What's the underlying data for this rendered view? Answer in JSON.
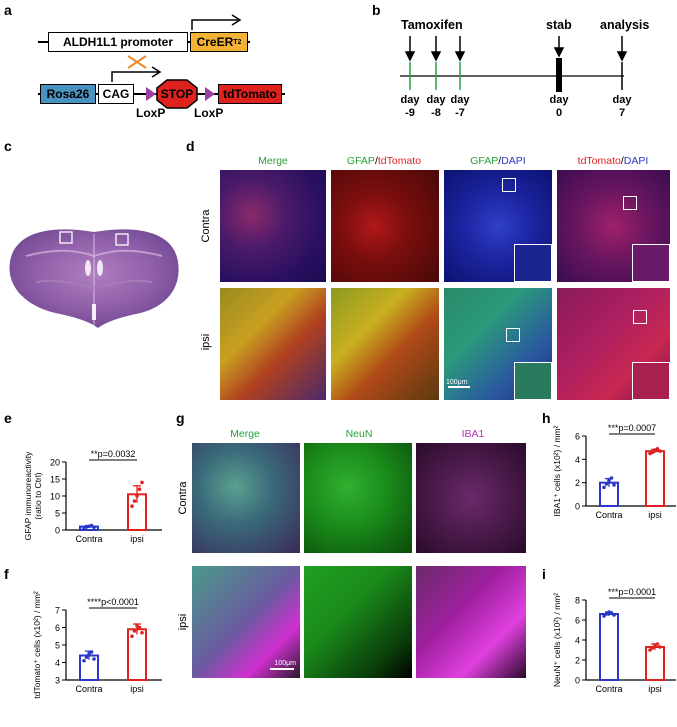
{
  "panels": {
    "a": "a",
    "b": "b",
    "c": "c",
    "d": "d",
    "e": "e",
    "f": "f",
    "g": "g",
    "h": "h",
    "i": "i"
  },
  "panel_a": {
    "promoter": "ALDH1L1 promoter",
    "cre": "CreER",
    "cre_sup": "T2",
    "rosa": "Rosa26",
    "cag": "CAG",
    "stop": "STOP",
    "tdtomato": "tdTomato",
    "loxp1": "LoxP",
    "loxp2": "LoxP",
    "colors": {
      "cre": "#f4b234",
      "rosa": "#4a93c1",
      "stop": "#e0221f",
      "tdtomato": "#e0221f",
      "loxp": "#9b3fa6",
      "cross": "#f08a2a"
    }
  },
  "panel_b": {
    "tamoxifen": "Tamoxifen",
    "stab": "stab",
    "analysis": "analysis",
    "days": [
      {
        "word": "day",
        "num": "-9"
      },
      {
        "word": "day",
        "num": "-8"
      },
      {
        "word": "day",
        "num": "-7"
      },
      {
        "word": "day",
        "num": "0"
      },
      {
        "word": "day",
        "num": "7"
      }
    ]
  },
  "panel_d": {
    "columns": [
      {
        "a": "Merge",
        "a_color": "#27a23a",
        "b": "",
        "b_color": "#000",
        "sep": ""
      },
      {
        "a": "GFAP",
        "a_color": "#27a23a",
        "b": "tdTomato",
        "b_color": "#e0221f",
        "sep": "/"
      },
      {
        "a": "GFAP",
        "a_color": "#27a23a",
        "b": "DAPI",
        "b_color": "#2b37c8",
        "sep": "/"
      },
      {
        "a": "tdTomato",
        "a_color": "#e0221f",
        "b": "DAPI",
        "b_color": "#2b37c8",
        "sep": "/"
      }
    ],
    "rows": [
      "Contra",
      "ipsi"
    ],
    "scalebar": "100μm"
  },
  "panel_g": {
    "columns": [
      {
        "label": "Merge",
        "color": "#27a23a"
      },
      {
        "label": "NeuN",
        "color": "#27a23a"
      },
      {
        "label": "IBA1",
        "color": "#b52fb5"
      }
    ],
    "rows": [
      "Contra",
      "ipsi"
    ],
    "scalebar": "100μm"
  },
  "chart_data": [
    {
      "id": "e",
      "type": "bar",
      "categories": [
        "Contra",
        "ipsi"
      ],
      "values": [
        1,
        10.5
      ],
      "errors": [
        0.3,
        2.5
      ],
      "points": [
        [
          0.6,
          0.9,
          1.1,
          1.3,
          0.8
        ],
        [
          7,
          8.5,
          10,
          12,
          14
        ]
      ],
      "colors": [
        "#2b37c8",
        "#e0221f"
      ],
      "ylabel": "GFAP immunoreactivity",
      "ylabel2": "(ratio to Ctrl)",
      "ylim": [
        0,
        20
      ],
      "yticks": [
        0,
        5,
        10,
        15,
        20
      ],
      "annotation": "**p=0.0032"
    },
    {
      "id": "f",
      "type": "bar",
      "categories": [
        "Contra",
        "ipsi"
      ],
      "values": [
        4.4,
        5.9
      ],
      "errors": [
        0.25,
        0.3
      ],
      "points": [
        [
          4.1,
          4.3,
          4.5,
          4.6,
          4.2
        ],
        [
          5.5,
          5.8,
          6.1,
          6.0,
          5.7
        ]
      ],
      "colors": [
        "#2b37c8",
        "#e0221f"
      ],
      "ylabel": "tdTomato⁺ cells (x10²) / mm²",
      "ylim": [
        3,
        7
      ],
      "yticks": [
        3,
        4,
        5,
        6,
        7
      ],
      "annotation": "****p<0.0001"
    },
    {
      "id": "h",
      "type": "bar",
      "categories": [
        "Contra",
        "ipsi"
      ],
      "values": [
        2.0,
        4.7
      ],
      "errors": [
        0.35,
        0.15
      ],
      "points": [
        [
          1.6,
          1.9,
          2.2,
          2.4,
          1.8
        ],
        [
          4.5,
          4.6,
          4.8,
          4.9,
          4.7
        ]
      ],
      "colors": [
        "#2b37c8",
        "#e0221f"
      ],
      "ylabel": "IBA1⁺ cells (x10²) / mm²",
      "ylim": [
        0,
        6
      ],
      "yticks": [
        0,
        2,
        4,
        6
      ],
      "annotation": "***p=0.0007"
    },
    {
      "id": "i",
      "type": "bar",
      "categories": [
        "Contra",
        "ipsi"
      ],
      "values": [
        6.6,
        3.3
      ],
      "errors": [
        0.2,
        0.3
      ],
      "points": [
        [
          6.4,
          6.6,
          6.8,
          6.7,
          6.5
        ],
        [
          3.0,
          3.2,
          3.5,
          3.6,
          3.3
        ]
      ],
      "colors": [
        "#2b37c8",
        "#e0221f"
      ],
      "ylabel": "NeuN⁺ cells (x10²) / mm²",
      "ylim": [
        0,
        8
      ],
      "yticks": [
        0,
        2,
        4,
        6,
        8
      ],
      "annotation": "***p=0.0001"
    }
  ]
}
